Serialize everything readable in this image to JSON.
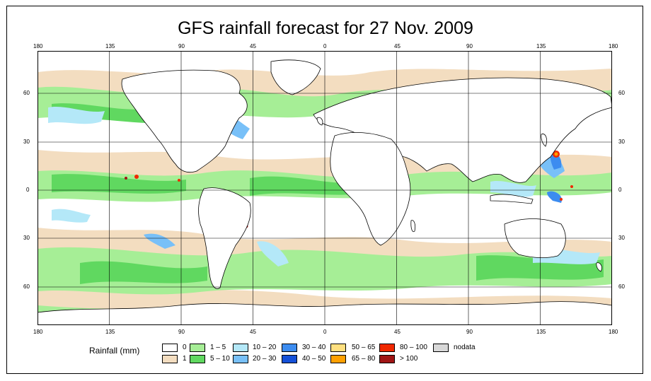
{
  "title": "GFS rainfall forecast for 27 Nov. 2009",
  "axes": {
    "top_lon": [
      "180",
      "135",
      "90",
      "45",
      "0",
      "45",
      "90",
      "135",
      "180"
    ],
    "bottom_lon": [
      "180",
      "135",
      "90",
      "45",
      "0",
      "45",
      "90",
      "135",
      "180"
    ],
    "left_lat": [
      "60",
      "30",
      "0",
      "30",
      "60"
    ],
    "right_lat": [
      "60",
      "30",
      "0",
      "30",
      "60"
    ]
  },
  "legend": {
    "title": "Rainfall (mm)",
    "items": [
      {
        "label": "0",
        "color": "#ffffff"
      },
      {
        "label": "1",
        "color": "#f3ddc0"
      },
      {
        "label": "1 – 5",
        "color": "#a6ee96"
      },
      {
        "label": "5 – 10",
        "color": "#60d860"
      },
      {
        "label": "10 – 20",
        "color": "#b4e8f8"
      },
      {
        "label": "20 – 30",
        "color": "#78c0f8"
      },
      {
        "label": "30 – 40",
        "color": "#3c8cf0"
      },
      {
        "label": "40 – 50",
        "color": "#1450d8"
      },
      {
        "label": "50 – 65",
        "color": "#ffe080"
      },
      {
        "label": "65 – 80",
        "color": "#ffa000"
      },
      {
        "label": "80 – 100",
        "color": "#f02800"
      },
      {
        "label": "> 100",
        "color": "#a01414"
      },
      {
        "label": "nodata",
        "color": "#d8d8d8"
      }
    ]
  }
}
